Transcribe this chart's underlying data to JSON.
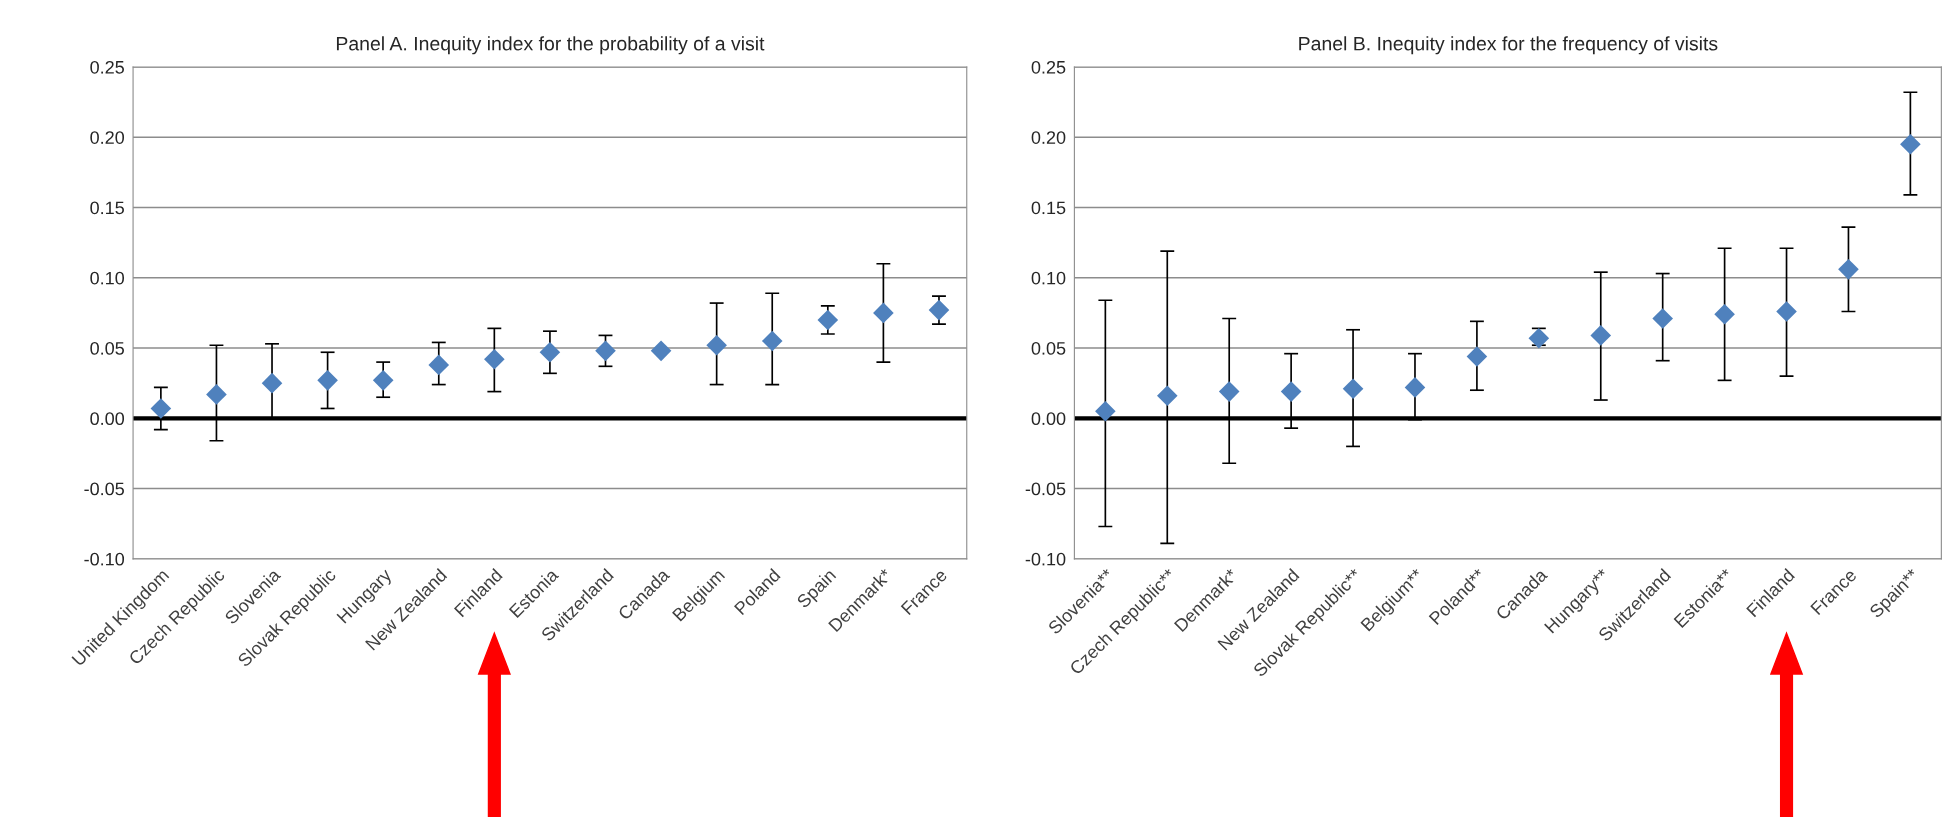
{
  "chart_data": [
    {
      "type": "scatter",
      "title": "Panel A. Inequity index for the probability of a visit",
      "categories": [
        "United Kingdom",
        "Czech Republic",
        "Slovenia",
        "Slovak Republic",
        "Hungary",
        "New Zealand",
        "Finland",
        "Estonia",
        "Switzerland",
        "Canada",
        "Belgium",
        "Poland",
        "Spain",
        "Denmark*",
        "France"
      ],
      "series": [
        {
          "color": "#4f81bd",
          "values": [
            0.007,
            0.017,
            0.025,
            0.027,
            0.027,
            0.038,
            0.042,
            0.047,
            0.048,
            0.048,
            0.052,
            0.055,
            0.07,
            0.075,
            0.077
          ],
          "errors": [
            [
              -0.008,
              0.022
            ],
            [
              -0.016,
              0.052
            ],
            [
              0.0,
              0.053
            ],
            [
              0.007,
              0.047
            ],
            [
              0.015,
              0.04
            ],
            [
              0.024,
              0.054
            ],
            [
              0.019,
              0.064
            ],
            [
              0.032,
              0.062
            ],
            [
              0.037,
              0.059
            ],
            null,
            [
              0.024,
              0.082
            ],
            [
              0.024,
              0.089
            ],
            [
              0.06,
              0.08
            ],
            [
              0.04,
              0.11
            ],
            [
              0.067,
              0.087
            ]
          ]
        }
      ],
      "ylim": [
        -0.1,
        0.25
      ],
      "yticks": [
        {
          "value": -0.1,
          "label": "-0.10"
        },
        {
          "value": -0.05,
          "label": "-0.05"
        },
        {
          "value": 0,
          "label": "0.00"
        },
        {
          "value": 0.05,
          "label": "0.05"
        },
        {
          "value": 0.1,
          "label": "0.10"
        },
        {
          "value": 0.15,
          "label": "0.15"
        },
        {
          "value": 0.2,
          "label": "0.20"
        },
        {
          "value": 0.25,
          "label": "0.25"
        }
      ],
      "ref_lines": [
        {
          "axis": "y",
          "value": 0,
          "color": "#000000"
        }
      ],
      "grid": "y",
      "marker": "diamond",
      "legend": false
    },
    {
      "type": "scatter",
      "title": "Panel B. Inequity index for the frequency of visits",
      "categories": [
        "Slovenia**",
        "Czech Republic**",
        "Denmark*",
        "New Zealand",
        "Slovak Republic**",
        "Belgium**",
        "Poland**",
        "Canada",
        "Hungary**",
        "Switzerland",
        "Estonia**",
        "Finland",
        "France",
        "Spain**"
      ],
      "series": [
        {
          "color": "#4f81bd",
          "values": [
            0.005,
            0.016,
            0.019,
            0.019,
            0.021,
            0.022,
            0.044,
            0.057,
            0.059,
            0.071,
            0.074,
            0.076,
            0.106,
            0.195
          ],
          "errors": [
            [
              -0.077,
              0.084
            ],
            [
              -0.089,
              0.119
            ],
            [
              -0.032,
              0.071
            ],
            [
              -0.007,
              0.046
            ],
            [
              -0.02,
              0.063
            ],
            [
              -0.001,
              0.046
            ],
            [
              0.02,
              0.069
            ],
            [
              0.052,
              0.064
            ],
            [
              0.013,
              0.104
            ],
            [
              0.041,
              0.103
            ],
            [
              0.027,
              0.121
            ],
            [
              0.03,
              0.121
            ],
            [
              0.076,
              0.136
            ],
            [
              0.159,
              0.232
            ]
          ]
        }
      ],
      "ylim": [
        -0.1,
        0.25
      ],
      "yticks": [
        {
          "value": -0.1,
          "label": "-0.10"
        },
        {
          "value": -0.05,
          "label": "-0.05"
        },
        {
          "value": 0,
          "label": "0.00"
        },
        {
          "value": 0.05,
          "label": "0.05"
        },
        {
          "value": 0.1,
          "label": "0.10"
        },
        {
          "value": 0.15,
          "label": "0.15"
        },
        {
          "value": 0.2,
          "label": "0.20"
        },
        {
          "value": 0.25,
          "label": "0.25"
        }
      ],
      "ref_lines": [
        {
          "axis": "y",
          "value": 0,
          "color": "#000000"
        }
      ],
      "grid": "y",
      "marker": "diamond",
      "legend": false
    }
  ]
}
